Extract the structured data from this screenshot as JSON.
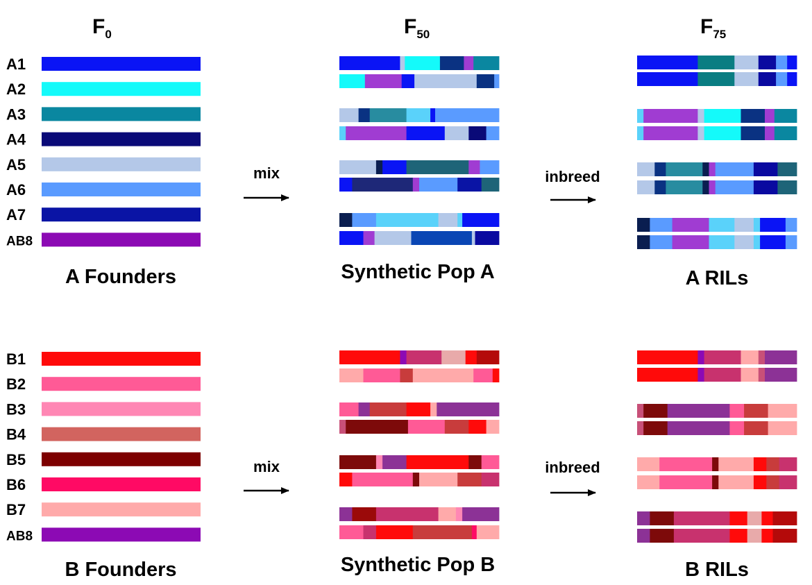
{
  "header": {
    "f0": {
      "base": "F",
      "sub": "0"
    },
    "f50": {
      "base": "F",
      "sub": "50"
    },
    "f75": {
      "base": "F",
      "sub": "75"
    }
  },
  "panels": {
    "a": {
      "founders_title": "A Founders",
      "pop_title": "Synthetic Pop A",
      "ril_title": "A RILs",
      "mix_label": "mix",
      "inbreed_label": "inbreed",
      "founders": [
        {
          "label": "A1",
          "color": "#0a14f5"
        },
        {
          "label": "A2",
          "color": "#14fafa"
        },
        {
          "label": "A3",
          "color": "#0a87a0"
        },
        {
          "label": "A4",
          "color": "#0a0a78"
        },
        {
          "label": "A5",
          "color": "#b4c8e8"
        },
        {
          "label": "A6",
          "color": "#5a9bff"
        },
        {
          "label": "A7",
          "color": "#0a14a5"
        },
        {
          "label": "AB8",
          "color": "#8c0ab4"
        }
      ],
      "pop_rows": [
        [
          [
            0.38,
            "#0a14f5"
          ],
          [
            0.03,
            "#b4c8e8"
          ],
          [
            0.22,
            "#14fafa"
          ],
          [
            0.15,
            "#0a3282"
          ],
          [
            0.06,
            "#a03cd2"
          ],
          [
            0.16,
            "#0a87a0"
          ]
        ],
        [
          [
            0.16,
            "#14fafa"
          ],
          [
            0.23,
            "#a03cd2"
          ],
          [
            0.08,
            "#0a14f5"
          ],
          [
            0.39,
            "#b4c8e8"
          ],
          [
            0.11,
            "#0a3282"
          ],
          [
            0.03,
            "#5a9bff"
          ]
        ],
        [
          [
            0.12,
            "#b4c8e8"
          ],
          [
            0.07,
            "#0a3282"
          ],
          [
            0.23,
            "#288ca0"
          ],
          [
            0.15,
            "#5ad2fa"
          ],
          [
            0.03,
            "#0a14f5"
          ],
          [
            0.4,
            "#5a9bff"
          ]
        ],
        [
          [
            0.04,
            "#5ad2fa"
          ],
          [
            0.38,
            "#a03cd2"
          ],
          [
            0.24,
            "#0a14f5"
          ],
          [
            0.15,
            "#b4c8e8"
          ],
          [
            0.11,
            "#0a0a78"
          ],
          [
            0.08,
            "#5a9bff"
          ]
        ],
        [
          [
            0.23,
            "#b4c8e8"
          ],
          [
            0.04,
            "#0a1e50"
          ],
          [
            0.15,
            "#0a14f5"
          ],
          [
            0.39,
            "#1e6478"
          ],
          [
            0.07,
            "#a03cd2"
          ],
          [
            0.12,
            "#5a9bff"
          ]
        ],
        [
          [
            0.08,
            "#0a14f5"
          ],
          [
            0.38,
            "#1e2878"
          ],
          [
            0.04,
            "#a03cd2"
          ],
          [
            0.24,
            "#5a9bff"
          ],
          [
            0.15,
            "#0a14a5"
          ],
          [
            0.11,
            "#1e6478"
          ]
        ],
        [
          [
            0.08,
            "#0a1e50"
          ],
          [
            0.15,
            "#5a9bff"
          ],
          [
            0.39,
            "#5ad2fa"
          ],
          [
            0.12,
            "#b4c8e8"
          ],
          [
            0.03,
            "#5ad2fa"
          ],
          [
            0.23,
            "#0a14f5"
          ]
        ],
        [
          [
            0.15,
            "#0a14f5"
          ],
          [
            0.07,
            "#a03cd2"
          ],
          [
            0.23,
            "#b4c8e8"
          ],
          [
            0.38,
            "#0a46b4"
          ],
          [
            0.02,
            "#b4c8e8"
          ],
          [
            0.15,
            "#0a0aa0"
          ]
        ]
      ],
      "ril_rows": [
        [
          [
            0.38,
            "#0a14f5"
          ],
          [
            0.23,
            "#0a7d82"
          ],
          [
            0.15,
            "#b4c8e8"
          ],
          [
            0.11,
            "#0a0aa0"
          ],
          [
            0.07,
            "#5a9bff"
          ],
          [
            0.06,
            "#0a14f5"
          ]
        ],
        [
          [
            0.04,
            "#5ad2fa"
          ],
          [
            0.34,
            "#a03cd2"
          ],
          [
            0.04,
            "#b4c8e8"
          ],
          [
            0.23,
            "#14fafa"
          ],
          [
            0.15,
            "#0a3282"
          ],
          [
            0.06,
            "#a03cd2"
          ],
          [
            0.14,
            "#0a87a0"
          ]
        ],
        [
          [
            0.11,
            "#b4c8e8"
          ],
          [
            0.07,
            "#0a3282"
          ],
          [
            0.23,
            "#288ca0"
          ],
          [
            0.04,
            "#0a1e50"
          ],
          [
            0.04,
            "#a03cd2"
          ],
          [
            0.24,
            "#5a9bff"
          ],
          [
            0.15,
            "#0a0aa0"
          ],
          [
            0.12,
            "#1e6478"
          ]
        ],
        [
          [
            0.08,
            "#0a1e50"
          ],
          [
            0.14,
            "#5a9bff"
          ],
          [
            0.23,
            "#a03cd2"
          ],
          [
            0.16,
            "#5ad2fa"
          ],
          [
            0.12,
            "#b4c8e8"
          ],
          [
            0.04,
            "#5ad2fa"
          ],
          [
            0.16,
            "#0a14f5"
          ],
          [
            0.07,
            "#5a9bff"
          ]
        ]
      ]
    },
    "b": {
      "founders_title": "B Founders",
      "pop_title": "Synthetic Pop B",
      "ril_title": "B RILs",
      "mix_label": "mix",
      "inbreed_label": "inbreed",
      "founders": [
        {
          "label": "B1",
          "color": "#ff0a0a"
        },
        {
          "label": "B2",
          "color": "#ff5a96"
        },
        {
          "label": "B3",
          "color": "#ff87b4"
        },
        {
          "label": "B4",
          "color": "#d2645f"
        },
        {
          "label": "B5",
          "color": "#7d0000"
        },
        {
          "label": "B6",
          "color": "#ff0a64"
        },
        {
          "label": "B7",
          "color": "#ffaaaa"
        },
        {
          "label": "AB8",
          "color": "#8c0ab4"
        }
      ],
      "pop_rows": [
        [
          [
            0.38,
            "#ff0a0a"
          ],
          [
            0.04,
            "#8c0ab4"
          ],
          [
            0.22,
            "#c8326e"
          ],
          [
            0.15,
            "#e8aaaa"
          ],
          [
            0.07,
            "#ff0a0a"
          ],
          [
            0.14,
            "#b40a0a"
          ]
        ],
        [
          [
            0.15,
            "#ffaaaa"
          ],
          [
            0.23,
            "#ff5a96"
          ],
          [
            0.08,
            "#c83c3c"
          ],
          [
            0.38,
            "#ffaaaa"
          ],
          [
            0.12,
            "#ff5a96"
          ],
          [
            0.04,
            "#ff0a0a"
          ]
        ],
        [
          [
            0.12,
            "#ff5a96"
          ],
          [
            0.07,
            "#8c3296"
          ],
          [
            0.23,
            "#c83c3c"
          ],
          [
            0.15,
            "#ff0a0a"
          ],
          [
            0.04,
            "#ffaaaa"
          ],
          [
            0.39,
            "#8c3296"
          ]
        ],
        [
          [
            0.04,
            "#c85078"
          ],
          [
            0.39,
            "#7d0a0a"
          ],
          [
            0.23,
            "#ff5a96"
          ],
          [
            0.15,
            "#c83c3c"
          ],
          [
            0.11,
            "#ff0a0a"
          ],
          [
            0.08,
            "#ffaaaa"
          ]
        ],
        [
          [
            0.23,
            "#7d0a0a"
          ],
          [
            0.04,
            "#ff87b4"
          ],
          [
            0.15,
            "#8c3296"
          ],
          [
            0.39,
            "#ff0a0a"
          ],
          [
            0.08,
            "#7d0a0a"
          ],
          [
            0.11,
            "#ff5a96"
          ]
        ],
        [
          [
            0.08,
            "#ff0a0a"
          ],
          [
            0.38,
            "#ff5a96"
          ],
          [
            0.04,
            "#7d0a0a"
          ],
          [
            0.24,
            "#ffaaaa"
          ],
          [
            0.15,
            "#c83c3c"
          ],
          [
            0.11,
            "#c8326e"
          ]
        ],
        [
          [
            0.08,
            "#8c3296"
          ],
          [
            0.15,
            "#9b0a0a"
          ],
          [
            0.39,
            "#c8326e"
          ],
          [
            0.11,
            "#ffaaaa"
          ],
          [
            0.04,
            "#ff87b4"
          ],
          [
            0.23,
            "#8c3296"
          ]
        ],
        [
          [
            0.15,
            "#ff5a96"
          ],
          [
            0.08,
            "#c8326e"
          ],
          [
            0.23,
            "#ff0a0a"
          ],
          [
            0.37,
            "#c83c3c"
          ],
          [
            0.03,
            "#ff0a64"
          ],
          [
            0.14,
            "#ffaaaa"
          ]
        ]
      ],
      "ril_rows": [
        [
          [
            0.38,
            "#ff0a0a"
          ],
          [
            0.04,
            "#8c0ab4"
          ],
          [
            0.23,
            "#c8326e"
          ],
          [
            0.11,
            "#ffaaaa"
          ],
          [
            0.04,
            "#c85078"
          ],
          [
            0.2,
            "#8c3296"
          ]
        ],
        [
          [
            0.04,
            "#c85078"
          ],
          [
            0.15,
            "#7d0a0a"
          ],
          [
            0.39,
            "#8c3296"
          ],
          [
            0.09,
            "#ff5a96"
          ],
          [
            0.15,
            "#c83c3c"
          ],
          [
            0.18,
            "#ffaaaa"
          ]
        ],
        [
          [
            0.14,
            "#ffaaaa"
          ],
          [
            0.33,
            "#ff5a96"
          ],
          [
            0.04,
            "#7d0a0a"
          ],
          [
            0.22,
            "#ffaaaa"
          ],
          [
            0.08,
            "#ff0a0a"
          ],
          [
            0.08,
            "#c83c3c"
          ],
          [
            0.11,
            "#c8326e"
          ]
        ],
        [
          [
            0.08,
            "#8c3296"
          ],
          [
            0.15,
            "#7d0a0a"
          ],
          [
            0.35,
            "#c8326e"
          ],
          [
            0.11,
            "#ff0a0a"
          ],
          [
            0.09,
            "#e8aaaa"
          ],
          [
            0.07,
            "#ff0a0a"
          ],
          [
            0.15,
            "#b40a0a"
          ]
        ]
      ]
    }
  }
}
